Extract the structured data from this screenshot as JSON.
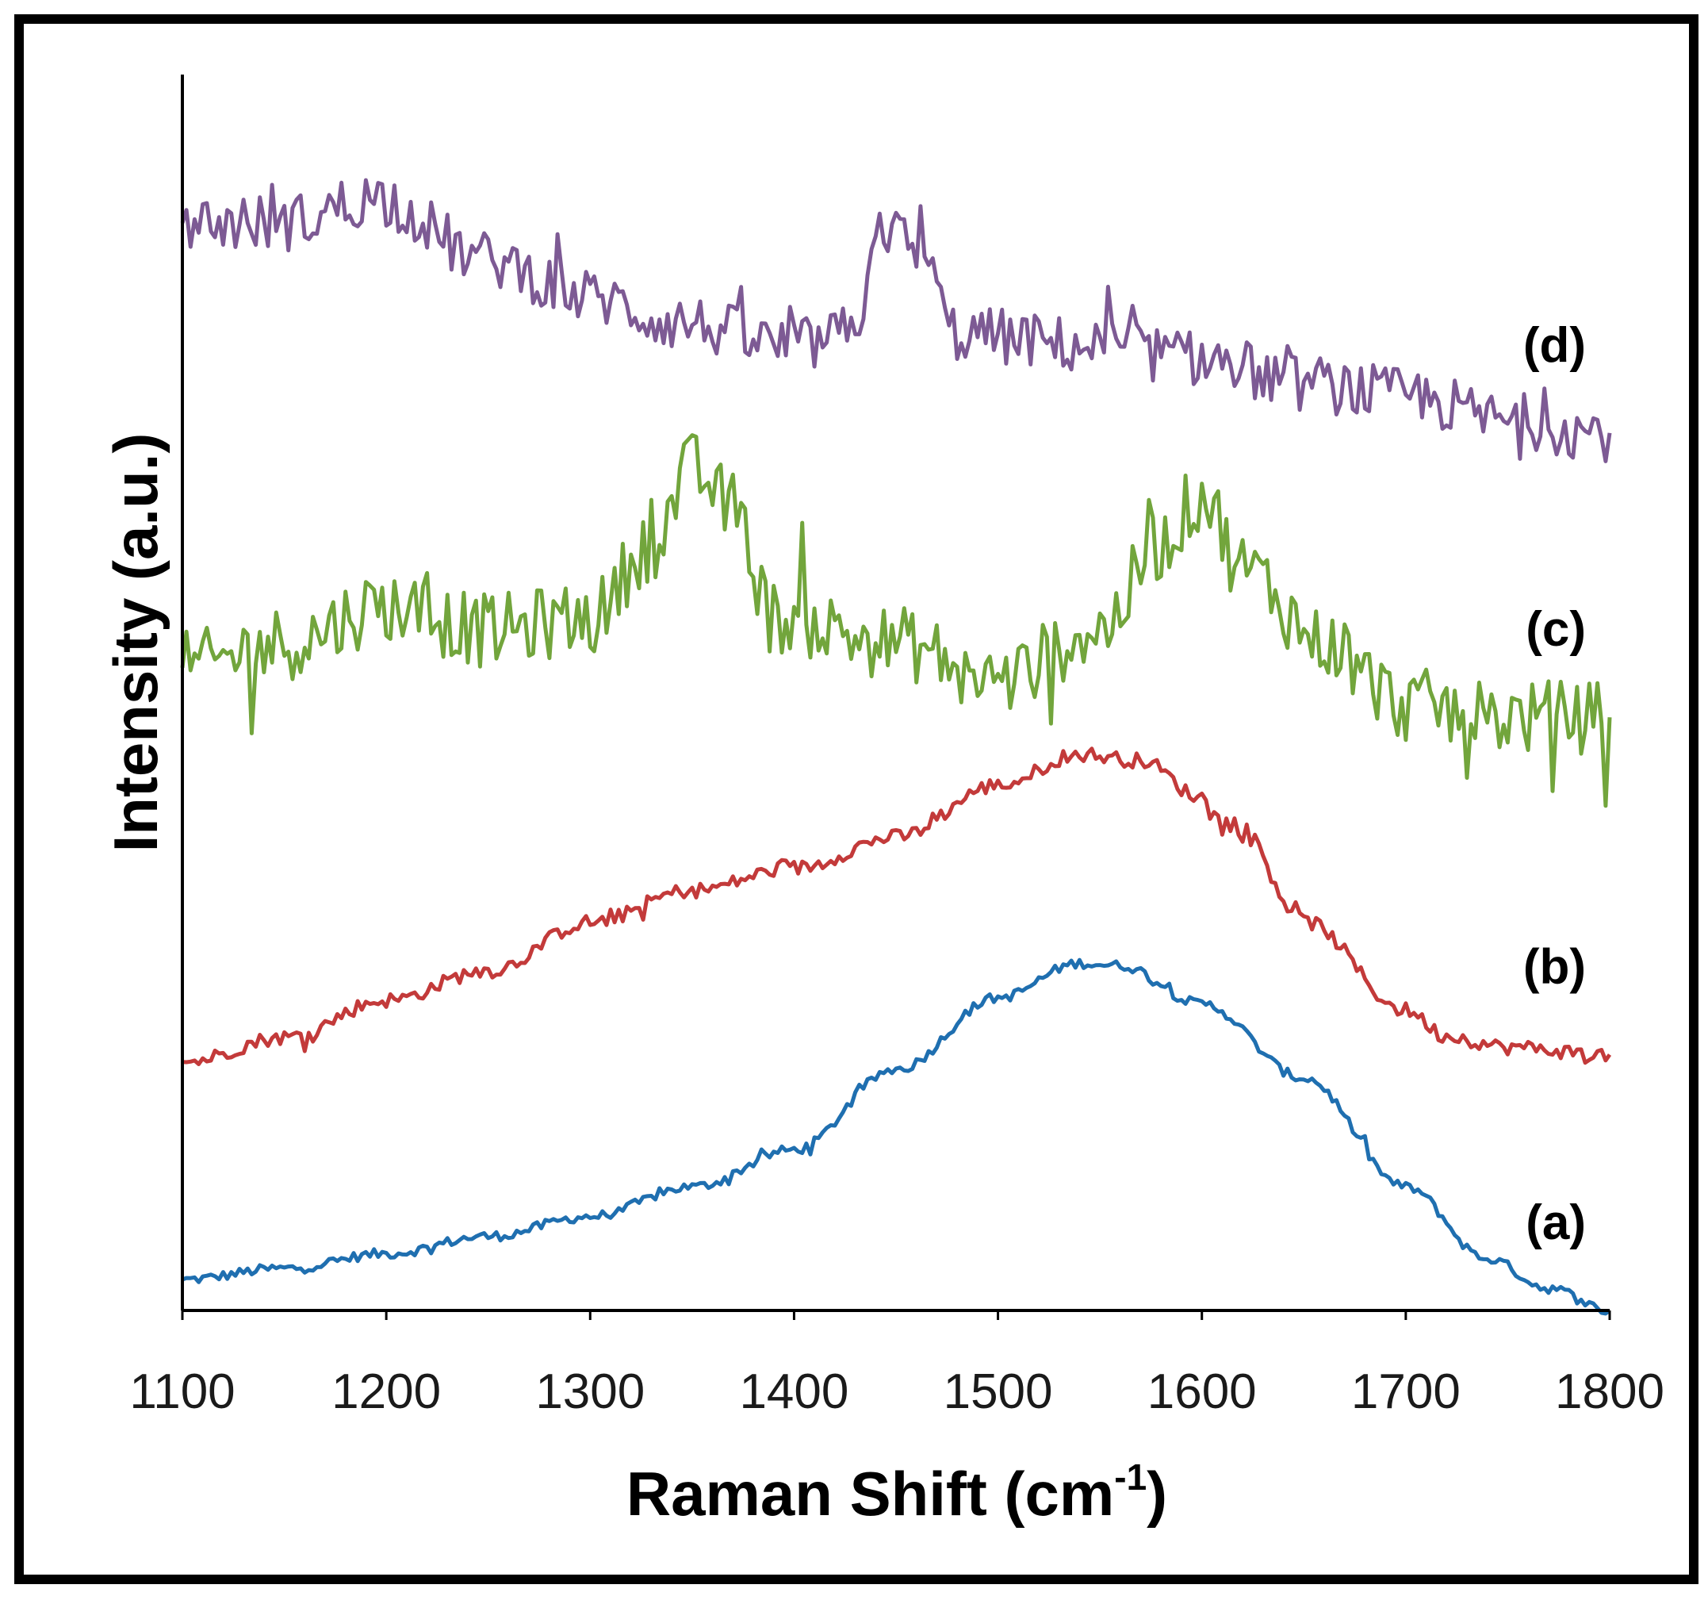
{
  "chart_data": {
    "type": "line",
    "title": "",
    "xlabel": "Raman Shift (cm",
    "xlabel_sup": "-1",
    "xlabel_close": ")",
    "ylabel": "Intensity (a.u.)",
    "xlim": [
      1100,
      1800
    ],
    "ylim": [
      0,
      100
    ],
    "x_ticks": [
      "1100",
      "1200",
      "1300",
      "1400",
      "1500",
      "1600",
      "1700",
      "1800"
    ],
    "y_ticks_shown": false,
    "series": [
      {
        "name": "(a)",
        "color": "#1f6fb0",
        "noise": 0.4,
        "points": [
          [
            1100,
            2.5
          ],
          [
            1150,
            3.4
          ],
          [
            1200,
            4.6
          ],
          [
            1250,
            6.0
          ],
          [
            1300,
            7.6
          ],
          [
            1350,
            10.0
          ],
          [
            1400,
            13.0
          ],
          [
            1450,
            19.5
          ],
          [
            1500,
            25.3
          ],
          [
            1540,
            28.1
          ],
          [
            1560,
            27.9
          ],
          [
            1600,
            24.8
          ],
          [
            1650,
            18.8
          ],
          [
            1700,
            10.0
          ],
          [
            1740,
            4.2
          ],
          [
            1770,
            1.8
          ],
          [
            1800,
            0.0
          ]
        ]
      },
      {
        "name": "(b)",
        "color": "#c33a3a",
        "noise": 0.6,
        "points": [
          [
            1100,
            20.1
          ],
          [
            1150,
            22.1
          ],
          [
            1200,
            25.1
          ],
          [
            1250,
            27.5
          ],
          [
            1300,
            31.4
          ],
          [
            1350,
            34.0
          ],
          [
            1400,
            35.8
          ],
          [
            1450,
            38.3
          ],
          [
            1500,
            42.5
          ],
          [
            1540,
            45.0
          ],
          [
            1570,
            44.5
          ],
          [
            1600,
            41.5
          ],
          [
            1620,
            38.5
          ],
          [
            1650,
            31.5
          ],
          [
            1700,
            24.3
          ],
          [
            1720,
            22.2
          ],
          [
            1750,
            21.3
          ],
          [
            1800,
            20.7
          ]
        ]
      },
      {
        "name": "(c)",
        "color": "#72a53c",
        "noise": 3.0,
        "points": [
          [
            1100,
            52
          ],
          [
            1150,
            54
          ],
          [
            1200,
            57
          ],
          [
            1250,
            55
          ],
          [
            1300,
            56
          ],
          [
            1330,
            62
          ],
          [
            1350,
            68
          ],
          [
            1370,
            65
          ],
          [
            1390,
            56
          ],
          [
            1450,
            54
          ],
          [
            1500,
            51
          ],
          [
            1550,
            55
          ],
          [
            1580,
            62
          ],
          [
            1600,
            66
          ],
          [
            1620,
            60
          ],
          [
            1660,
            54
          ],
          [
            1700,
            49
          ],
          [
            1750,
            48
          ],
          [
            1800,
            48
          ]
        ]
      },
      {
        "name": "(d)",
        "color": "#7d5a94",
        "noise": 2.3,
        "points": [
          [
            1100,
            88
          ],
          [
            1150,
            88
          ],
          [
            1195,
            90
          ],
          [
            1250,
            85
          ],
          [
            1300,
            82
          ],
          [
            1340,
            80
          ],
          [
            1400,
            78
          ],
          [
            1430,
            79
          ],
          [
            1440,
            88
          ],
          [
            1460,
            86
          ],
          [
            1480,
            79
          ],
          [
            1550,
            78
          ],
          [
            1600,
            77
          ],
          [
            1650,
            75
          ],
          [
            1700,
            74
          ],
          [
            1750,
            72
          ],
          [
            1800,
            71
          ]
        ]
      }
    ]
  }
}
